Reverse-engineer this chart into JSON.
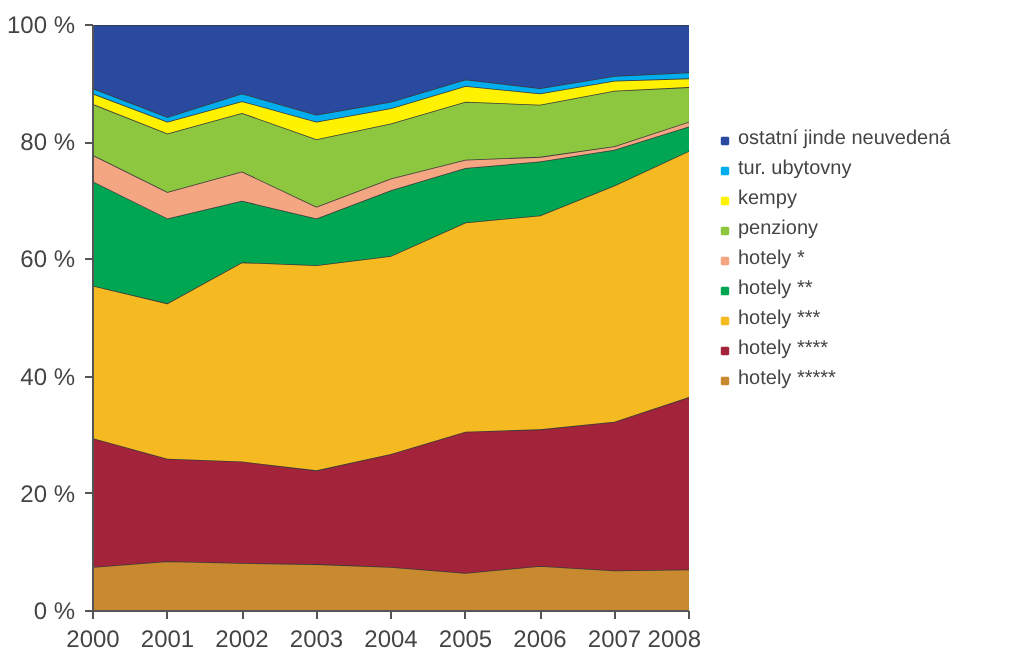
{
  "chart_data": {
    "type": "area",
    "stacked": true,
    "x": [
      2000,
      2001,
      2002,
      2003,
      2004,
      2005,
      2006,
      2007,
      2008
    ],
    "xlim": [
      2000,
      2008
    ],
    "xticks": [
      2000,
      2001,
      2002,
      2003,
      2004,
      2005,
      2006,
      2007,
      2008
    ],
    "ylim": [
      0,
      100
    ],
    "yticks": [
      {
        "value": 0,
        "label": "0 %"
      },
      {
        "value": 20,
        "label": "20 %"
      },
      {
        "value": 40,
        "label": "40 %"
      },
      {
        "value": 60,
        "label": "60 %"
      },
      {
        "value": 80,
        "label": "80 %"
      },
      {
        "value": 100,
        "label": "100 %"
      }
    ],
    "legend": "right",
    "series": [
      {
        "name": "hotely *****",
        "color": "#c8892f",
        "values": [
          7.5,
          8.5,
          8.2,
          8.0,
          7.5,
          6.5,
          7.7,
          6.9,
          7.1
        ]
      },
      {
        "name": "hotely ****",
        "color": "#a3233a",
        "values": [
          22.0,
          17.5,
          17.3,
          16.0,
          19.3,
          24.1,
          23.3,
          25.4,
          29.4
        ]
      },
      {
        "name": "hotely ***",
        "color": "#f5b921",
        "values": [
          26.0,
          26.5,
          34.0,
          35.0,
          33.8,
          35.7,
          36.5,
          40.3,
          42.0
        ]
      },
      {
        "name": "hotely **",
        "color": "#00a651",
        "values": [
          17.8,
          14.5,
          10.5,
          8.0,
          11.2,
          9.3,
          9.2,
          6.1,
          4.2
        ]
      },
      {
        "name": "hotely *",
        "color": "#f4a582",
        "values": [
          4.5,
          4.5,
          5.0,
          2.0,
          2.0,
          1.4,
          0.8,
          0.6,
          0.8
        ]
      },
      {
        "name": "penziony",
        "color": "#8dc63f",
        "values": [
          8.7,
          10.0,
          10.0,
          11.5,
          9.4,
          9.9,
          8.9,
          9.5,
          5.9
        ]
      },
      {
        "name": "kempy",
        "color": "#fff200",
        "values": [
          1.8,
          2.0,
          2.0,
          3.0,
          2.6,
          2.7,
          1.9,
          1.7,
          1.5
        ]
      },
      {
        "name": "tur. ubytovny",
        "color": "#00aeef",
        "values": [
          0.9,
          0.8,
          1.3,
          1.2,
          1.1,
          1.1,
          0.9,
          0.8,
          1.0
        ]
      },
      {
        "name": "ostatní jinde neuvedená",
        "color": "#2a4aa0",
        "values": [
          10.8,
          15.7,
          11.7,
          15.3,
          13.1,
          9.3,
          10.8,
          8.7,
          8.1
        ]
      }
    ]
  }
}
